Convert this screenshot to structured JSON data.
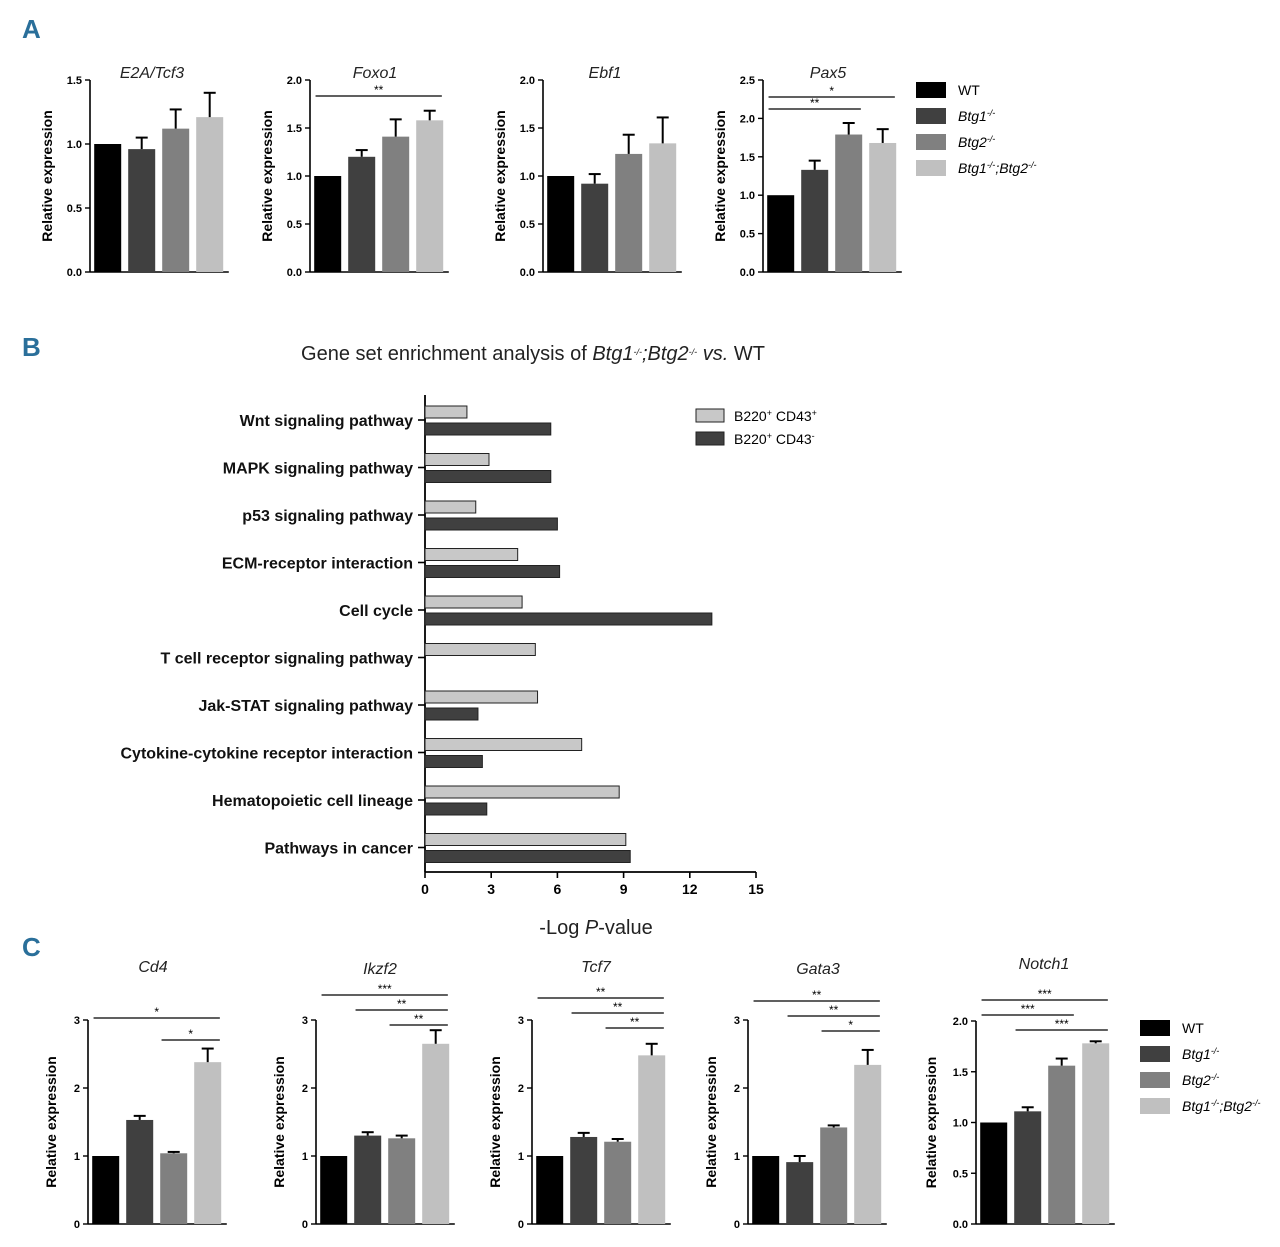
{
  "panel_labels": {
    "a": "A",
    "b": "B",
    "c": "C"
  },
  "legend": {
    "a": [
      "WT",
      "Btg1-/-",
      "Btg2-/-",
      "Btg1-/-;Btg2-/-"
    ],
    "b": [
      "B220+ CD43+",
      "B220+ CD43-"
    ],
    "c": [
      "WT",
      "Btg1-/-",
      "Btg2-/-",
      "Btg1-/-;Btg2-/-"
    ]
  },
  "colors": {
    "wt": "#000000",
    "btg1": "#404040",
    "btg2": "#808080",
    "dko": "#c0c0c0",
    "cd43pos": "#c8c8c8",
    "cd43neg": "#404040",
    "panel_label": "#2a6f9a"
  },
  "chart_data": [
    {
      "panel": "A",
      "type": "bar",
      "title": "E2A/Tcf3",
      "ylabel": "Relative expression",
      "ylim": [
        0,
        1.5
      ],
      "yticks": [
        "0.0",
        "0.5",
        "1.0",
        "1.5"
      ],
      "categories": [
        "WT",
        "Btg1-/-",
        "Btg2-/-",
        "Btg1-/-;Btg2-/-"
      ],
      "values": [
        1.0,
        0.96,
        1.12,
        1.21
      ],
      "errors": [
        0,
        0.09,
        0.15,
        0.19
      ],
      "significance": []
    },
    {
      "panel": "A",
      "type": "bar",
      "title": "Foxo1",
      "ylabel": "Relative expression",
      "ylim": [
        0,
        2.0
      ],
      "yticks": [
        "0.0",
        "0.5",
        "1.0",
        "1.5",
        "2.0"
      ],
      "categories": [
        "WT",
        "Btg1-/-",
        "Btg2-/-",
        "Btg1-/-;Btg2-/-"
      ],
      "values": [
        1.0,
        1.2,
        1.41,
        1.58
      ],
      "errors": [
        0,
        0.07,
        0.18,
        0.1
      ],
      "significance": [
        {
          "from": 0,
          "to": 3,
          "label": "**"
        }
      ]
    },
    {
      "panel": "A",
      "type": "bar",
      "title": "Ebf1",
      "ylabel": "Relative expression",
      "ylim": [
        0,
        2.0
      ],
      "yticks": [
        "0.0",
        "0.5",
        "1.0",
        "1.5",
        "2.0"
      ],
      "categories": [
        "WT",
        "Btg1-/-",
        "Btg2-/-",
        "Btg1-/-;Btg2-/-"
      ],
      "values": [
        1.0,
        0.92,
        1.23,
        1.34
      ],
      "errors": [
        0,
        0.1,
        0.2,
        0.27
      ],
      "significance": []
    },
    {
      "panel": "A",
      "type": "bar",
      "title": "Pax5",
      "ylabel": "Relative expression",
      "ylim": [
        0,
        2.5
      ],
      "yticks": [
        "0.0",
        "0.5",
        "1.0",
        "1.5",
        "2.0",
        "2.5"
      ],
      "categories": [
        "WT",
        "Btg1-/-",
        "Btg2-/-",
        "Btg1-/-;Btg2-/-"
      ],
      "values": [
        1.0,
        1.33,
        1.79,
        1.68
      ],
      "errors": [
        0,
        0.12,
        0.15,
        0.18
      ],
      "significance": [
        {
          "from": 0,
          "to": 3,
          "label": "*"
        },
        {
          "from": 0,
          "to": 2,
          "label": "**"
        }
      ]
    },
    {
      "panel": "B",
      "type": "bar",
      "orientation": "horizontal",
      "title": "Gene set enrichment analysis of Btg1-/-;Btg2-/- vs. WT",
      "xlabel": "-Log P-value",
      "xlim": [
        0,
        15
      ],
      "xticks": [
        "0",
        "3",
        "6",
        "9",
        "12",
        "15"
      ],
      "categories": [
        "Wnt signaling pathway",
        "MAPK signaling pathway",
        "p53 signaling pathway",
        "ECM-receptor interaction",
        "Cell cycle",
        "T cell receptor signaling pathway",
        "Jak-STAT signaling pathway",
        "Cytokine-cytokine receptor interaction",
        "Hematopoietic cell lineage",
        "Pathways in cancer"
      ],
      "series": [
        {
          "name": "B220+ CD43+",
          "values": [
            1.9,
            2.9,
            2.3,
            4.2,
            4.4,
            5.0,
            5.1,
            7.1,
            8.8,
            9.1
          ]
        },
        {
          "name": "B220+ CD43-",
          "values": [
            5.7,
            5.7,
            6.0,
            6.1,
            13.0,
            0,
            2.4,
            2.6,
            2.8,
            9.3
          ]
        }
      ]
    },
    {
      "panel": "C",
      "type": "bar",
      "title": "Cd4",
      "ylabel": "Relative expression",
      "ylim": [
        0,
        3
      ],
      "yticks": [
        "0",
        "1",
        "2",
        "3"
      ],
      "categories": [
        "WT",
        "Btg1-/-",
        "Btg2-/-",
        "Btg1-/-;Btg2-/-"
      ],
      "values": [
        1.0,
        1.53,
        1.04,
        2.38
      ],
      "errors": [
        0,
        0.06,
        0.02,
        0.2
      ],
      "significance": [
        {
          "from": 0,
          "to": 3,
          "label": "*"
        },
        {
          "from": 2,
          "to": 3,
          "label": "*"
        }
      ]
    },
    {
      "panel": "C",
      "type": "bar",
      "title": "Ikzf2",
      "ylabel": "Relative expression",
      "ylim": [
        0,
        3
      ],
      "yticks": [
        "0",
        "1",
        "2",
        "3"
      ],
      "categories": [
        "WT",
        "Btg1-/-",
        "Btg2-/-",
        "Btg1-/-;Btg2-/-"
      ],
      "values": [
        1.0,
        1.3,
        1.26,
        2.65
      ],
      "errors": [
        0,
        0.05,
        0.04,
        0.2
      ],
      "significance": [
        {
          "from": 0,
          "to": 3,
          "label": "***"
        },
        {
          "from": 1,
          "to": 3,
          "label": "**"
        },
        {
          "from": 2,
          "to": 3,
          "label": "**"
        }
      ]
    },
    {
      "panel": "C",
      "type": "bar",
      "title": "Tcf7",
      "ylabel": "Relative expression",
      "ylim": [
        0,
        3
      ],
      "yticks": [
        "0",
        "1",
        "2",
        "3"
      ],
      "categories": [
        "WT",
        "Btg1-/-",
        "Btg2-/-",
        "Btg1-/-;Btg2-/-"
      ],
      "values": [
        1.0,
        1.28,
        1.21,
        2.48
      ],
      "errors": [
        0,
        0.06,
        0.04,
        0.17
      ],
      "significance": [
        {
          "from": 0,
          "to": 3,
          "label": "**"
        },
        {
          "from": 1,
          "to": 3,
          "label": "**"
        },
        {
          "from": 2,
          "to": 3,
          "label": "**"
        }
      ]
    },
    {
      "panel": "C",
      "type": "bar",
      "title": "Gata3",
      "ylabel": "Relative expression",
      "ylim": [
        0,
        3
      ],
      "yticks": [
        "0",
        "1",
        "2",
        "3"
      ],
      "categories": [
        "WT",
        "Btg1-/-",
        "Btg2-/-",
        "Btg1-/-;Btg2-/-"
      ],
      "values": [
        1.0,
        0.91,
        1.42,
        2.34
      ],
      "errors": [
        0,
        0.09,
        0.03,
        0.22
      ],
      "significance": [
        {
          "from": 0,
          "to": 3,
          "label": "**"
        },
        {
          "from": 1,
          "to": 3,
          "label": "**"
        },
        {
          "from": 2,
          "to": 3,
          "label": "*"
        }
      ]
    },
    {
      "panel": "C",
      "type": "bar",
      "title": "Notch1",
      "ylabel": "Relative expression",
      "ylim": [
        0,
        2.0
      ],
      "yticks": [
        "0.0",
        "0.5",
        "1.0",
        "1.5",
        "2.0"
      ],
      "categories": [
        "WT",
        "Btg1-/-",
        "Btg2-/-",
        "Btg1-/-;Btg2-/-"
      ],
      "values": [
        1.0,
        1.11,
        1.56,
        1.78
      ],
      "errors": [
        0,
        0.04,
        0.07,
        0.02
      ],
      "significance": [
        {
          "from": 0,
          "to": 3,
          "label": "***"
        },
        {
          "from": 0,
          "to": 2,
          "label": "***"
        },
        {
          "from": 1,
          "to": 3,
          "label": "***"
        }
      ]
    }
  ]
}
